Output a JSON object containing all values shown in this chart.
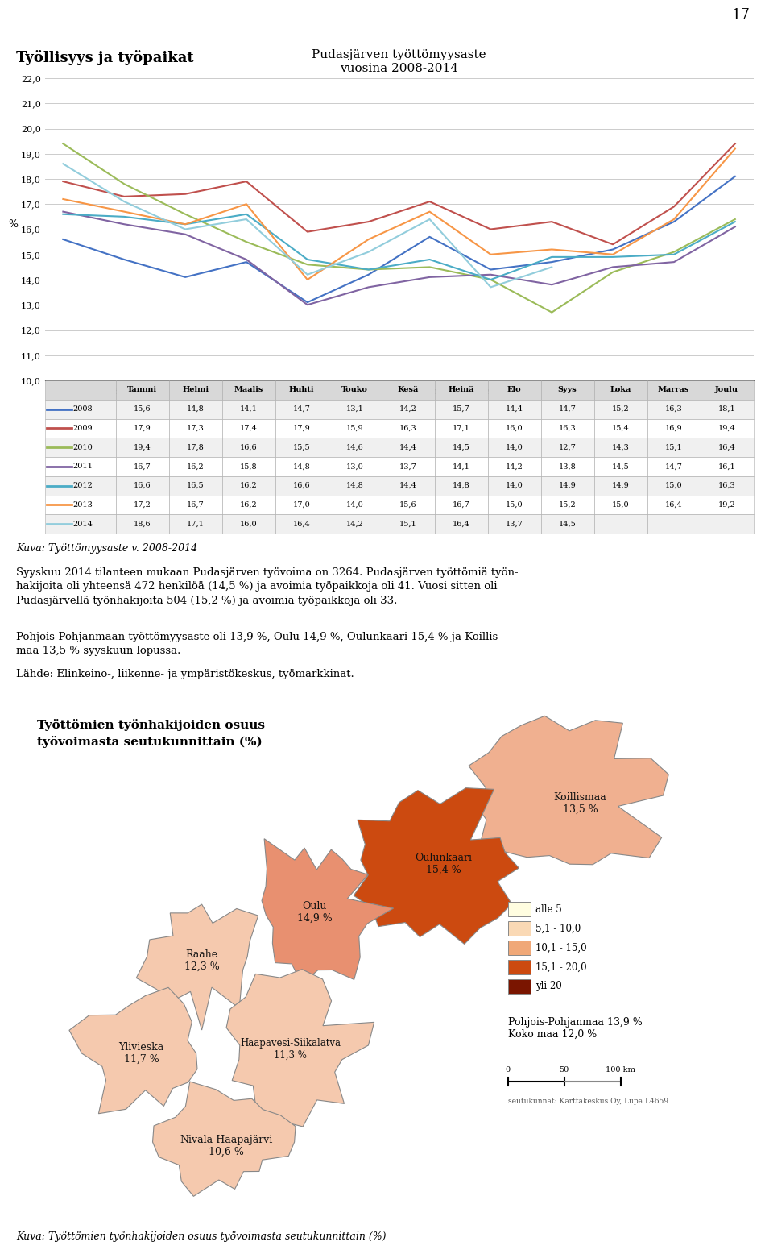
{
  "page_number": "17",
  "heading": "Työllisyys ja työpaikat",
  "chart_title": "Pudasjärven työttömyysaste\nvuosina 2008-2014",
  "ylabel": "%",
  "months": [
    "Tammi",
    "Helmi",
    "Maalis",
    "Huhti",
    "Touko",
    "Kesä",
    "Heinä",
    "Elo",
    "Syys",
    "Loka",
    "Marras",
    "Joulu"
  ],
  "series": {
    "2008": {
      "color": "#4472C4",
      "data": [
        15.6,
        14.8,
        14.1,
        14.7,
        13.1,
        14.2,
        15.7,
        14.4,
        14.7,
        15.2,
        16.3,
        18.1
      ]
    },
    "2009": {
      "color": "#C0504D",
      "data": [
        17.9,
        17.3,
        17.4,
        17.9,
        15.9,
        16.3,
        17.1,
        16.0,
        16.3,
        15.4,
        16.9,
        19.4
      ]
    },
    "2010": {
      "color": "#9BBB59",
      "data": [
        19.4,
        17.8,
        16.6,
        15.5,
        14.6,
        14.4,
        14.5,
        14.0,
        12.7,
        14.3,
        15.1,
        16.4
      ]
    },
    "2011": {
      "color": "#8064A2",
      "data": [
        16.7,
        16.2,
        15.8,
        14.8,
        13.0,
        13.7,
        14.1,
        14.2,
        13.8,
        14.5,
        14.7,
        16.1
      ]
    },
    "2012": {
      "color": "#4BACC6",
      "data": [
        16.6,
        16.5,
        16.2,
        16.6,
        14.8,
        14.4,
        14.8,
        14.0,
        14.9,
        14.9,
        15.0,
        16.3
      ]
    },
    "2013": {
      "color": "#F79646",
      "data": [
        17.2,
        16.7,
        16.2,
        17.0,
        14.0,
        15.6,
        16.7,
        15.0,
        15.2,
        15.0,
        16.4,
        19.2
      ]
    },
    "2014": {
      "color": "#92CDDC",
      "data": [
        18.6,
        17.1,
        16.0,
        16.4,
        14.2,
        15.1,
        16.4,
        13.7,
        14.5,
        null,
        null,
        null
      ]
    }
  },
  "ylim": [
    10.0,
    22.0
  ],
  "yticks": [
    10.0,
    11.0,
    12.0,
    13.0,
    14.0,
    15.0,
    16.0,
    17.0,
    18.0,
    19.0,
    20.0,
    21.0,
    22.0
  ],
  "caption1": "Kuva: Työttömyysaste v. 2008-2014",
  "para1_bold": "Syyskuu 2014 tilanteen mukaan Pudasjärven työvoima on 3264.",
  "para1_rest": " Pudasjärven työttömiä työn-hakijoita oli yhteensä 472 henkilöä (14,5 %) ja avoimia työpaikkoja oli 41. Vuosi sitten oli Pudasjärvellä työnhakijoita 504 (15,2 %) ja avoimia työpaikkoja oli 33.",
  "para2": "Pohjois-Pohjanmaan työttömyysaste oli 13,9 %, Oulu 14,9 %, Oulunkaari 15,4 % ja Koillis-maa 13,5 % syyskuun lopussa.",
  "para3": "Lähde: Elinkeino-, liikenne- ja ympäristökeskus, työmarkkinat.",
  "caption2": "Kuva: Työttömien työnhakijoiden osuus työvoimasta seutukunnittain (%)",
  "map_title_line1": "Työttömien työnhakijoiden osuus",
  "map_title_line2": "työvoimasta seutukunnittain (%)",
  "background_color": "#FFFFFF",
  "chart_bg": "#FFFFFF",
  "grid_color": "#CCCCCC",
  "color_pale_salmon": "#F2C9B8",
  "color_salmon": "#E8967A",
  "color_orange_red": "#D4541A",
  "color_light_tan": "#F5E6D8",
  "color_very_light": "#FDF5EE",
  "color_dark_red": "#8B1A00"
}
